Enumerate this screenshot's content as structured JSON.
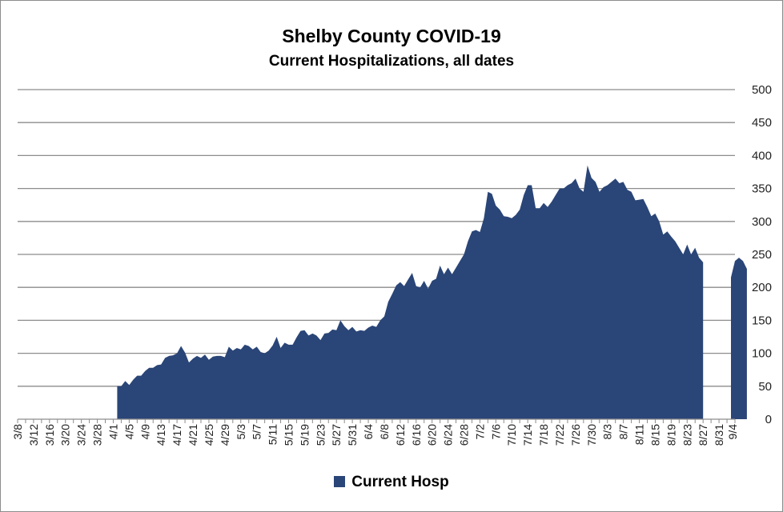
{
  "chart_data": {
    "type": "area",
    "title": "Shelby County COVID-19",
    "subtitle": "Current Hospitalizations, all dates",
    "xlabel": "",
    "ylabel": "",
    "ylim": [
      0,
      500
    ],
    "yticks": [
      0,
      50,
      100,
      150,
      200,
      250,
      300,
      350,
      400,
      450,
      500
    ],
    "grid": true,
    "legend_position": "bottom",
    "color": "#2a4577",
    "xtick_labels": [
      "3/8",
      "3/12",
      "3/16",
      "3/20",
      "3/24",
      "3/28",
      "4/1",
      "4/5",
      "4/9",
      "4/13",
      "4/17",
      "4/21",
      "4/25",
      "4/29",
      "5/3",
      "5/7",
      "5/11",
      "5/15",
      "5/19",
      "5/23",
      "5/27",
      "5/31",
      "6/4",
      "6/8",
      "6/12",
      "6/16",
      "6/20",
      "6/24",
      "6/28",
      "7/2",
      "7/6",
      "7/10",
      "7/14",
      "7/18",
      "7/22",
      "7/26",
      "7/30",
      "8/3",
      "8/7",
      "8/11",
      "8/15",
      "8/19",
      "8/23",
      "8/27",
      "8/31",
      "9/4"
    ],
    "series": [
      {
        "name": "Current Hosp",
        "start_date": "4/2",
        "values": [
          50,
          50,
          58,
          52,
          60,
          66,
          66,
          73,
          78,
          78,
          82,
          83,
          93,
          96,
          97,
          100,
          111,
          101,
          86,
          92,
          96,
          93,
          98,
          90,
          95,
          96,
          96,
          94,
          110,
          104,
          108,
          106,
          113,
          111,
          106,
          110,
          102,
          100,
          104,
          112,
          125,
          108,
          116,
          113,
          113,
          124,
          134,
          135,
          127,
          130,
          127,
          120,
          130,
          131,
          136,
          135,
          150,
          141,
          135,
          140,
          133,
          135,
          134,
          139,
          142,
          140,
          150,
          156,
          178,
          190,
          203,
          208,
          202,
          212,
          222,
          202,
          200,
          210,
          198,
          210,
          213,
          233,
          220,
          230,
          220,
          230,
          240,
          250,
          270,
          285,
          287,
          284,
          305,
          345,
          342,
          324,
          318,
          308,
          307,
          305,
          310,
          318,
          340,
          355,
          355,
          320,
          320,
          328,
          322,
          330,
          340,
          350,
          350,
          355,
          358,
          365,
          350,
          345,
          385,
          366,
          360,
          345,
          352,
          355,
          360,
          365,
          358,
          360,
          348,
          345,
          332,
          333,
          334,
          322,
          308,
          312,
          300,
          280,
          285,
          277,
          270,
          260,
          250,
          265,
          250,
          260,
          245,
          238,
          null,
          null,
          null,
          null,
          null,
          null,
          215,
          240,
          245,
          240,
          228
        ]
      }
    ]
  }
}
